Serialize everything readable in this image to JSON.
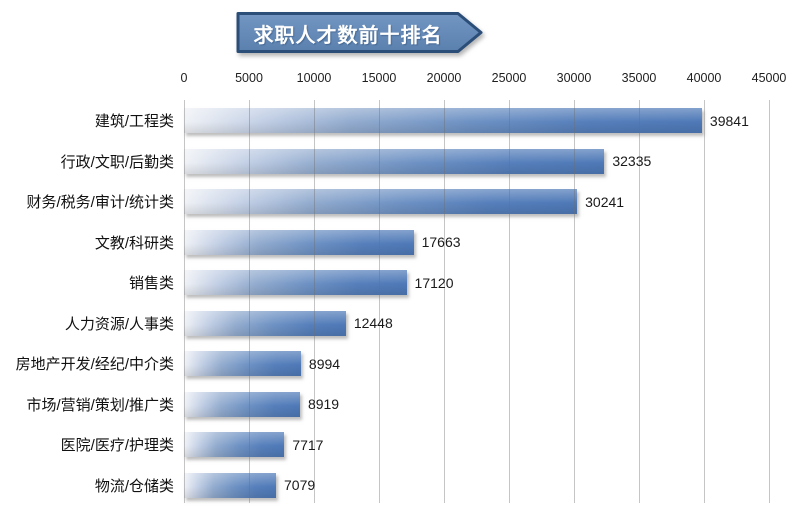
{
  "title": {
    "text": "求职人才数前十排名"
  },
  "colors": {
    "banner_fill_top": "#7396c2",
    "banner_fill_bottom": "#5a80ae",
    "banner_border": "#2b4e78",
    "banner_text": "#ffffff",
    "bar_gradient_start": "#f0f2f6",
    "bar_gradient_end": "#4e79b7",
    "gridline": "#ababab",
    "axis_text": "#1f1f1f",
    "value_text": "#1a1a1a",
    "background": "#ffffff"
  },
  "chart_data": {
    "type": "bar",
    "orientation": "horizontal",
    "title": "求职人才数前十排名",
    "categories": [
      "建筑/工程类",
      "行政/文职/后勤类",
      "财务/税务/审计/统计类",
      "文教/科研类",
      "销售类",
      "人力资源/人事类",
      "房地产开发/经纪/中介类",
      "市场/营销/策划/推广类",
      "医院/医疗/护理类",
      "物流/仓储类"
    ],
    "values": [
      39841,
      32335,
      30241,
      17663,
      17120,
      12448,
      8994,
      8919,
      7717,
      7079
    ],
    "x_ticks": [
      0,
      5000,
      10000,
      15000,
      20000,
      25000,
      30000,
      35000,
      40000,
      45000
    ],
    "xlim": [
      0,
      45000
    ],
    "xlabel": "",
    "ylabel": "",
    "grid": true,
    "legend": false,
    "value_labels": true
  }
}
